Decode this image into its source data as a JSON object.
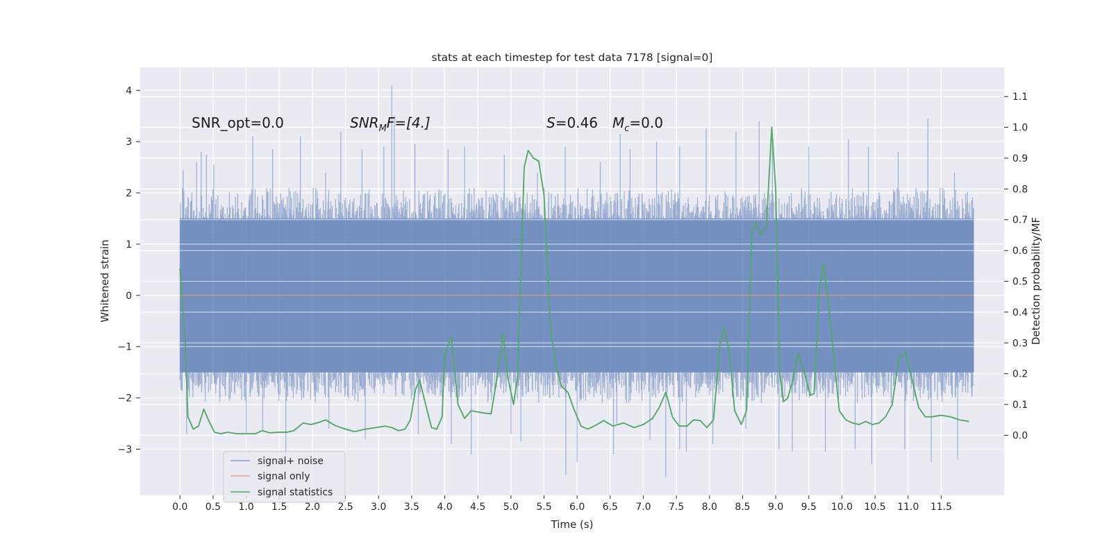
{
  "chart_data": {
    "type": "line",
    "title": "stats at each timestep for test data 7178 [signal=0]",
    "xlabel": "Time (s)",
    "ylabel_left": "Whitened strain",
    "ylabel_right": "Detection probability/MF",
    "xlim": [
      -0.6,
      12.45
    ],
    "ylim_left": [
      -3.9,
      4.45
    ],
    "ylim_right": [
      -0.195,
      1.195
    ],
    "x_ticks": [
      0.0,
      0.5,
      1.0,
      1.5,
      2.0,
      2.5,
      3.0,
      3.5,
      4.0,
      4.5,
      5.0,
      5.5,
      6.0,
      6.5,
      7.0,
      7.5,
      8.0,
      8.5,
      9.0,
      9.5,
      10.0,
      10.5,
      11.0,
      11.5
    ],
    "x_tick_labels": [
      "0.0",
      "0.5",
      "1.0",
      "1.5",
      "2.0",
      "2.5",
      "3.0",
      "3.5",
      "4.0",
      "4.5",
      "5.0",
      "5.5",
      "6.0",
      "6.5",
      "7.0",
      "7.5",
      "8.0",
      "8.5",
      "9.0",
      "9.5",
      "10.0",
      "10.5",
      "11.0",
      "11.5"
    ],
    "y_left_ticks": [
      -3,
      -2,
      -1,
      0,
      1,
      2,
      3,
      4
    ],
    "y_left_tick_labels": [
      "−3",
      "−2",
      "−1",
      "0",
      "1",
      "2",
      "3",
      "4"
    ],
    "y_right_ticks": [
      0.0,
      0.1,
      0.2,
      0.3,
      0.4,
      0.5,
      0.6,
      0.7,
      0.8,
      0.9,
      1.0,
      1.1
    ],
    "y_right_tick_labels": [
      "0.0",
      "0.1",
      "0.2",
      "0.3",
      "0.4",
      "0.5",
      "0.6",
      "0.7",
      "0.8",
      "0.9",
      "1.0",
      "1.1"
    ],
    "grid": true,
    "legend_position": "bottom-left",
    "annotations": {
      "snr_opt": "SNR_opt=0.0",
      "snr_mf_main": "SNR",
      "snr_mf_sub": "M",
      "snr_mf_rest": "F=[4.]",
      "s_main": "S",
      "s_rest": "=0.46",
      "mc_main": "M",
      "mc_sub": "c",
      "mc_rest": "=0.0"
    },
    "colors": {
      "background": "#eaeaf2",
      "grid": "#ffffff",
      "noise": "#4c72b0",
      "signal": "#dd8452",
      "stats": "#55a868"
    },
    "series": [
      {
        "name": "signal+ noise",
        "axis": "left",
        "description_kind": "noise",
        "x_range": [
          0.0,
          11.99
        ],
        "typical_extent": [
          -1.5,
          1.5
        ],
        "peaks_high": [
          [
            0.04,
            2.0
          ],
          [
            0.05,
            2.45
          ],
          [
            0.25,
            2.6
          ],
          [
            0.32,
            2.8
          ],
          [
            0.4,
            2.75
          ],
          [
            0.51,
            2.55
          ],
          [
            1.1,
            3.1
          ],
          [
            1.4,
            2.85
          ],
          [
            1.82,
            3.1
          ],
          [
            2.2,
            2.4
          ],
          [
            2.43,
            3.2
          ],
          [
            2.75,
            2.85
          ],
          [
            3.08,
            2.9
          ],
          [
            3.2,
            4.1
          ],
          [
            3.24,
            3.5
          ],
          [
            3.55,
            2.95
          ],
          [
            4.05,
            2.85
          ],
          [
            4.3,
            2.9
          ],
          [
            4.9,
            2.75
          ],
          [
            5.4,
            2.4
          ],
          [
            5.82,
            2.9
          ],
          [
            6.35,
            2.6
          ],
          [
            6.65,
            3.15
          ],
          [
            6.8,
            2.85
          ],
          [
            7.2,
            3.0
          ],
          [
            7.55,
            2.9
          ],
          [
            7.95,
            3.25
          ],
          [
            8.4,
            3.2
          ],
          [
            8.75,
            3.4
          ],
          [
            8.95,
            3.05
          ],
          [
            9.5,
            2.9
          ],
          [
            10.1,
            3.05
          ],
          [
            10.4,
            2.9
          ],
          [
            10.85,
            2.8
          ],
          [
            11.3,
            3.45
          ],
          [
            11.7,
            2.4
          ]
        ],
        "peaks_low": [
          [
            0.0,
            -0.8
          ],
          [
            0.02,
            -1.85
          ],
          [
            0.1,
            -2.7
          ],
          [
            1.0,
            -2.7
          ],
          [
            1.25,
            -2.65
          ],
          [
            1.6,
            -3.25
          ],
          [
            2.25,
            -2.6
          ],
          [
            2.8,
            -2.8
          ],
          [
            3.6,
            -2.7
          ],
          [
            4.1,
            -2.9
          ],
          [
            4.4,
            -3.1
          ],
          [
            5.0,
            -2.7
          ],
          [
            5.15,
            -2.85
          ],
          [
            5.83,
            -3.5
          ],
          [
            6.0,
            -3.25
          ],
          [
            6.55,
            -3.1
          ],
          [
            6.6,
            -2.5
          ],
          [
            7.1,
            -2.8
          ],
          [
            7.34,
            -3.55
          ],
          [
            7.55,
            -3.0
          ],
          [
            7.65,
            -3.05
          ],
          [
            8.05,
            -2.9
          ],
          [
            8.55,
            -2.6
          ],
          [
            9.05,
            -3.0
          ],
          [
            9.25,
            -3.05
          ],
          [
            9.75,
            -3.05
          ],
          [
            10.2,
            -3.0
          ],
          [
            10.45,
            -3.3
          ],
          [
            10.95,
            -3.0
          ],
          [
            11.35,
            -3.25
          ],
          [
            11.75,
            -3.2
          ]
        ]
      },
      {
        "name": "signal only",
        "axis": "left",
        "x": [
          0.0,
          11.99
        ],
        "y": [
          0.0,
          0.0
        ]
      },
      {
        "name": "signal statistics",
        "axis": "right",
        "x": [
          0.0,
          0.08,
          0.12,
          0.2,
          0.28,
          0.36,
          0.44,
          0.52,
          0.62,
          0.72,
          0.86,
          1.0,
          1.14,
          1.24,
          1.36,
          1.5,
          1.62,
          1.72,
          1.86,
          1.98,
          2.1,
          2.2,
          2.34,
          2.5,
          2.64,
          2.8,
          2.96,
          3.1,
          3.2,
          3.3,
          3.4,
          3.48,
          3.56,
          3.62,
          3.7,
          3.8,
          3.88,
          3.96,
          4.0,
          4.1,
          4.2,
          4.3,
          4.4,
          4.52,
          4.6,
          4.7,
          4.8,
          4.88,
          4.96,
          5.04,
          5.1,
          5.2,
          5.26,
          5.34,
          5.42,
          5.5,
          5.6,
          5.68,
          5.76,
          5.86,
          5.96,
          6.06,
          6.16,
          6.26,
          6.4,
          6.54,
          6.7,
          6.86,
          7.0,
          7.14,
          7.24,
          7.34,
          7.44,
          7.54,
          7.66,
          7.76,
          7.86,
          7.96,
          8.06,
          8.16,
          8.22,
          8.3,
          8.38,
          8.48,
          8.56,
          8.64,
          8.7,
          8.78,
          8.86,
          8.94,
          9.0,
          9.06,
          9.12,
          9.18,
          9.26,
          9.34,
          9.44,
          9.52,
          9.58,
          9.66,
          9.72,
          9.8,
          9.88,
          9.96,
          10.06,
          10.16,
          10.26,
          10.36,
          10.46,
          10.56,
          10.66,
          10.76,
          10.86,
          10.96,
          11.06,
          11.16,
          11.26,
          11.36,
          11.5,
          11.64,
          11.78,
          11.92
        ],
        "y": [
          0.54,
          0.3,
          0.06,
          0.02,
          0.03,
          0.085,
          0.045,
          0.01,
          0.005,
          0.01,
          0.005,
          0.005,
          0.005,
          0.015,
          0.008,
          0.01,
          0.01,
          0.015,
          0.04,
          0.035,
          0.042,
          0.05,
          0.032,
          0.02,
          0.012,
          0.02,
          0.025,
          0.03,
          0.025,
          0.015,
          0.02,
          0.05,
          0.15,
          0.18,
          0.11,
          0.025,
          0.02,
          0.06,
          0.26,
          0.32,
          0.1,
          0.055,
          0.08,
          0.075,
          0.072,
          0.07,
          0.2,
          0.33,
          0.18,
          0.1,
          0.19,
          0.87,
          0.925,
          0.9,
          0.89,
          0.78,
          0.34,
          0.23,
          0.16,
          0.14,
          0.08,
          0.03,
          0.02,
          0.03,
          0.048,
          0.03,
          0.04,
          0.025,
          0.035,
          0.055,
          0.09,
          0.14,
          0.06,
          0.03,
          0.03,
          0.05,
          0.048,
          0.025,
          0.05,
          0.3,
          0.35,
          0.27,
          0.08,
          0.035,
          0.08,
          0.66,
          0.69,
          0.65,
          0.68,
          1.0,
          0.8,
          0.2,
          0.11,
          0.12,
          0.18,
          0.265,
          0.2,
          0.13,
          0.135,
          0.47,
          0.56,
          0.42,
          0.25,
          0.08,
          0.05,
          0.04,
          0.035,
          0.045,
          0.035,
          0.04,
          0.06,
          0.1,
          0.25,
          0.27,
          0.18,
          0.09,
          0.06,
          0.06,
          0.065,
          0.06,
          0.05,
          0.045
        ]
      }
    ]
  }
}
